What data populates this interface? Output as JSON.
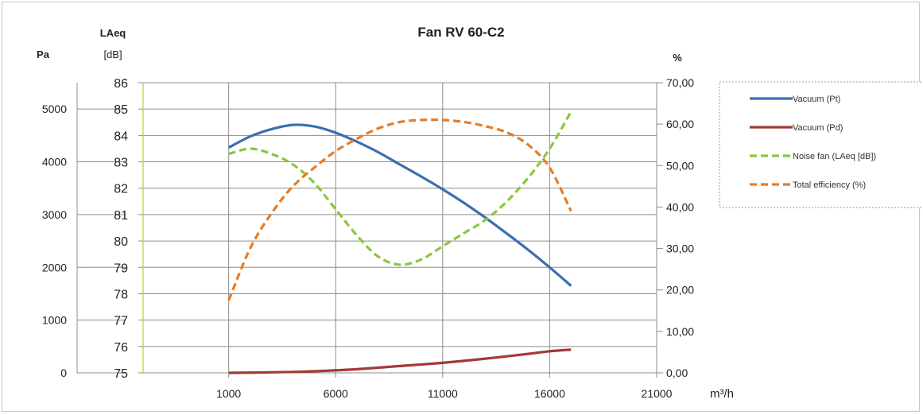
{
  "chart_data": {
    "type": "line",
    "title": "Fan RV 60-C2",
    "xlabel": "m³/h",
    "axes": {
      "pa": {
        "label": "Pa",
        "range": [
          0,
          5500
        ],
        "ticks": [
          "0",
          "1000",
          "2000",
          "3000",
          "4000",
          "5000"
        ],
        "tick_values": [
          0,
          1000,
          2000,
          3000,
          4000,
          5000
        ]
      },
      "laeq": {
        "label_line1": "LAeq",
        "label_line2": "[dB]",
        "range": [
          75,
          86
        ],
        "ticks": [
          "75",
          "76",
          "77",
          "78",
          "79",
          "80",
          "81",
          "82",
          "83",
          "84",
          "85",
          "86"
        ],
        "tick_values": [
          75,
          76,
          77,
          78,
          79,
          80,
          81,
          82,
          83,
          84,
          85,
          86
        ]
      },
      "percent": {
        "label": "%",
        "range": [
          0,
          70
        ],
        "ticks": [
          "0,00",
          "10,00",
          "20,00",
          "30,00",
          "40,00",
          "50,00",
          "60,00",
          "70,00"
        ],
        "tick_values": [
          0,
          10,
          20,
          30,
          40,
          50,
          60,
          70
        ]
      },
      "x": {
        "range": [
          -3000,
          21000
        ],
        "ticks": [
          "1000",
          "6000",
          "11000",
          "16000",
          "21000"
        ],
        "tick_values": [
          1000,
          6000,
          11000,
          16000,
          21000
        ]
      }
    },
    "grid": true,
    "legend_position": "right",
    "series": [
      {
        "name": "Vacuum (Pt)",
        "axis": "pa",
        "style": "solid",
        "color": "#3a6fb0",
        "x": [
          1000,
          2000,
          3000,
          4000,
          5000,
          6000,
          7000,
          8000,
          9000,
          10000,
          11000,
          12000,
          13000,
          14000,
          15000,
          16000,
          17000
        ],
        "y": [
          4270,
          4480,
          4620,
          4700,
          4670,
          4550,
          4380,
          4180,
          3950,
          3720,
          3480,
          3220,
          2940,
          2640,
          2330,
          2000,
          1650
        ]
      },
      {
        "name": "Vacuum (Pd)",
        "axis": "pa",
        "style": "solid",
        "color": "#a33a35",
        "x": [
          1000,
          3000,
          5000,
          7000,
          9000,
          11000,
          13000,
          15000,
          16000,
          17000
        ],
        "y": [
          0,
          10,
          30,
          70,
          130,
          190,
          270,
          360,
          410,
          440
        ]
      },
      {
        "name": "Noise fan (LAeq [dB])",
        "axis": "laeq",
        "style": "dashed",
        "color": "#8ac640",
        "x": [
          1000,
          2000,
          3000,
          4000,
          5000,
          6000,
          7000,
          8000,
          9000,
          10000,
          11000,
          12000,
          13000,
          14000,
          15000,
          16000,
          17000
        ],
        "y": [
          83.3,
          83.5,
          83.3,
          82.9,
          82.2,
          81.2,
          80.2,
          79.4,
          79.1,
          79.3,
          79.8,
          80.3,
          80.8,
          81.5,
          82.4,
          83.5,
          84.9
        ]
      },
      {
        "name": "Total efficiency (%)",
        "axis": "percent",
        "style": "dashed",
        "color": "#e67c23",
        "x": [
          1000,
          2000,
          3000,
          4000,
          5000,
          6000,
          7000,
          8000,
          9000,
          10000,
          11000,
          12000,
          13000,
          14000,
          15000,
          16000,
          17000
        ],
        "y": [
          17.5,
          30,
          38.5,
          45,
          49.5,
          53.5,
          56.5,
          59,
          60.5,
          61,
          61,
          60.5,
          59.5,
          58,
          55,
          49.5,
          39
        ]
      }
    ]
  }
}
